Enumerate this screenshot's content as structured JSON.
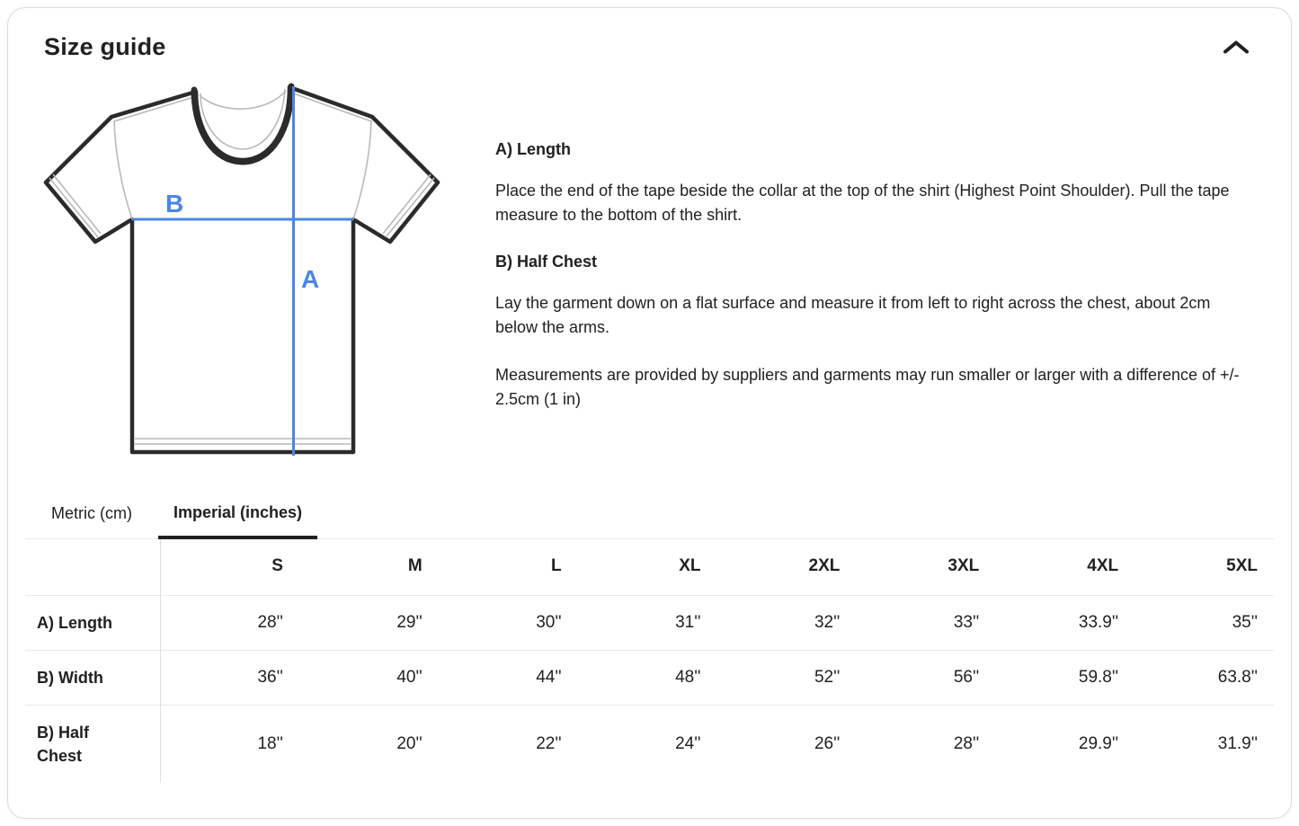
{
  "header": {
    "title": "Size guide",
    "collapse_icon": "chevron-up"
  },
  "diagram": {
    "description": "t-shirt with measurement lines",
    "label_a": "A",
    "label_b": "B",
    "line_color": "#4a86e8"
  },
  "instructions": [
    {
      "heading": "A) Length",
      "body": "Place the end of the tape beside the collar at the top of the shirt (Highest Point Shoulder). Pull the tape measure to the bottom of the shirt."
    },
    {
      "heading": "B) Half Chest",
      "body": "Lay the garment down on a flat surface and measure it from left to right across the chest, about 2cm below the arms."
    }
  ],
  "note": "Measurements are provided by suppliers and garments may run smaller or larger with a difference of +/- 2.5cm (1 in)",
  "tabs": [
    {
      "label": "Metric (cm)",
      "active": false
    },
    {
      "label": "Imperial (inches)",
      "active": true
    }
  ],
  "size_table": {
    "columns": [
      "S",
      "M",
      "L",
      "XL",
      "2XL",
      "3XL",
      "4XL",
      "5XL"
    ],
    "rows": [
      {
        "label": "A) Length",
        "values": [
          "28''",
          "29''",
          "30''",
          "31''",
          "32''",
          "33''",
          "33.9''",
          "35''"
        ]
      },
      {
        "label": "B) Width",
        "values": [
          "36''",
          "40''",
          "44''",
          "48''",
          "52''",
          "56''",
          "59.8''",
          "63.8''"
        ]
      },
      {
        "label": "B) Half Chest",
        "values": [
          "18''",
          "20''",
          "22''",
          "24''",
          "26''",
          "28''",
          "29.9''",
          "31.9''"
        ]
      }
    ]
  }
}
